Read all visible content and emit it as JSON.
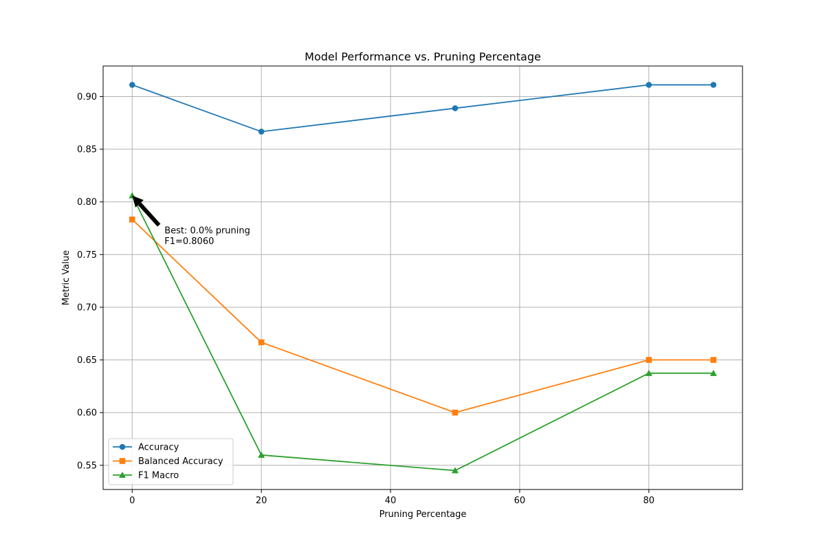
{
  "chart_data": {
    "type": "line",
    "title": "Model Performance vs. Pruning Percentage",
    "xlabel": "Pruning Percentage",
    "ylabel": "Metric Value",
    "xlim": [
      -4.5,
      94.5
    ],
    "ylim": [
      0.527,
      0.929
    ],
    "xticks": [
      0,
      20,
      40,
      60,
      80
    ],
    "yticks": [
      0.55,
      0.6,
      0.65,
      0.7,
      0.75,
      0.8,
      0.85,
      0.9
    ],
    "grid": true,
    "legend_position": "lower-left",
    "x": [
      0,
      20,
      50,
      80,
      90
    ],
    "series": [
      {
        "name": "Accuracy",
        "color": "#1f77b4",
        "marker": "circle",
        "values": [
          0.9111,
          0.8667,
          0.8889,
          0.9111,
          0.9111
        ]
      },
      {
        "name": "Balanced Accuracy",
        "color": "#ff7f0e",
        "marker": "square",
        "values": [
          0.7833,
          0.6667,
          0.6,
          0.65,
          0.65
        ]
      },
      {
        "name": "F1 Macro",
        "color": "#2ca02c",
        "marker": "triangle",
        "values": [
          0.806,
          0.5597,
          0.545,
          0.6374,
          0.6374
        ]
      }
    ],
    "annotation": {
      "lines": [
        "Best: 0.0% pruning",
        "F1=0.8060"
      ],
      "target": {
        "x": 0,
        "y": 0.806
      },
      "text_at": {
        "x": 5,
        "y": 0.77
      }
    }
  }
}
